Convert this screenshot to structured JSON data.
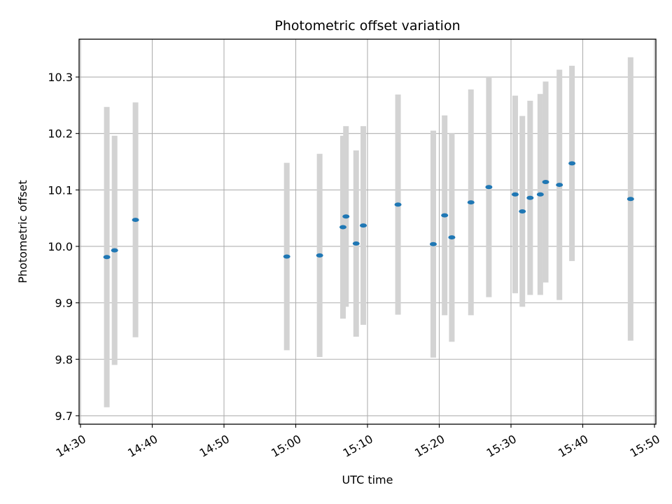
{
  "chart_data": {
    "type": "scatter",
    "title": "Photometric offset variation",
    "xlabel": "UTC time",
    "ylabel": "Photometric offset",
    "x_is_time": true,
    "xlim": [
      "14:30",
      "15:50"
    ],
    "ylim": [
      9.685,
      10.367
    ],
    "x_ticks": [
      "14:30",
      "14:40",
      "14:50",
      "15:00",
      "15:10",
      "15:20",
      "15:30",
      "15:40",
      "15:50"
    ],
    "y_ticks": [
      9.7,
      9.8,
      9.9,
      10.0,
      10.1,
      10.2,
      10.3
    ],
    "y_tick_labels": [
      "9.7",
      "9.8",
      "9.9",
      "10.0",
      "10.1",
      "10.2",
      "10.3"
    ],
    "grid": true,
    "colors": {
      "marker": "#1f77b4",
      "errorbar": "#d3d3d3",
      "grid": "#b0b0b0"
    },
    "series": [
      {
        "points": [
          {
            "t": "14:33:40",
            "y": 9.981,
            "err": 0.266
          },
          {
            "t": "14:34:45",
            "y": 9.993,
            "err": 0.203
          },
          {
            "t": "14:37:40",
            "y": 10.047,
            "err": 0.208
          },
          {
            "t": "14:58:45",
            "y": 9.982,
            "err": 0.166
          },
          {
            "t": "15:03:20",
            "y": 9.984,
            "err": 0.18
          },
          {
            "t": "15:06:35",
            "y": 10.034,
            "err": 0.162
          },
          {
            "t": "15:07:00",
            "y": 10.053,
            "err": 0.16
          },
          {
            "t": "15:08:25",
            "y": 10.005,
            "err": 0.165
          },
          {
            "t": "15:09:25",
            "y": 10.037,
            "err": 0.176
          },
          {
            "t": "15:14:15",
            "y": 10.074,
            "err": 0.195
          },
          {
            "t": "15:19:10",
            "y": 10.004,
            "err": 0.201
          },
          {
            "t": "15:20:45",
            "y": 10.055,
            "err": 0.177
          },
          {
            "t": "15:21:45",
            "y": 10.016,
            "err": 0.185
          },
          {
            "t": "15:24:25",
            "y": 10.078,
            "err": 0.2
          },
          {
            "t": "15:26:55",
            "y": 10.105,
            "err": 0.195
          },
          {
            "t": "15:30:35",
            "y": 10.092,
            "err": 0.175
          },
          {
            "t": "15:31:35",
            "y": 10.062,
            "err": 0.169
          },
          {
            "t": "15:32:40",
            "y": 10.086,
            "err": 0.172
          },
          {
            "t": "15:34:05",
            "y": 10.092,
            "err": 0.178
          },
          {
            "t": "15:34:50",
            "y": 10.114,
            "err": 0.178
          },
          {
            "t": "15:36:45",
            "y": 10.109,
            "err": 0.204
          },
          {
            "t": "15:38:30",
            "y": 10.147,
            "err": 0.173
          },
          {
            "t": "15:46:40",
            "y": 10.084,
            "err": 0.251
          }
        ]
      }
    ]
  }
}
